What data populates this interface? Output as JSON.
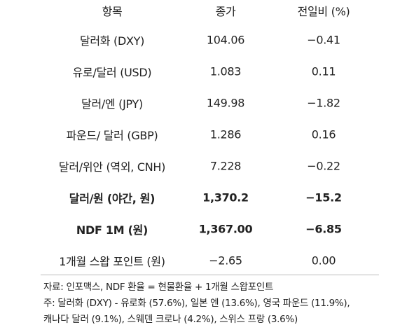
{
  "table": {
    "header": [
      "항목",
      "종가",
      "전일비 (%)"
    ],
    "rows": [
      [
        "달러화 (DXY)",
        "104.06",
        "−0.41"
      ],
      [
        "유로/달러 (USD)",
        "1.083",
        "0.11"
      ],
      [
        "달러/엔 (JPY)",
        "149.98",
        "−1.82"
      ],
      [
        "파운드/ 달러 (GBP)",
        "1.286",
        "0.16"
      ],
      [
        "달러/위안 (역외, CNH)",
        "7.228",
        "−0.22"
      ],
      [
        "달러/원 (야간, 원)",
        "1,370.2",
        "−15.2"
      ],
      [
        "NDF 1M (원)",
        "1,367.00",
        "−6.85"
      ],
      [
        "1개월 스왑 포인트 (원)",
        "−2.65",
        "0.00"
      ]
    ]
  },
  "notes": [
    "자료: 인포맥스, NDF 환율 = 현물환율 + 1개월 스왑포인트",
    "주: 달러화 (DXY) - 유로화 (57.6%), 일본 엔 (13.6%), 영국 파운드 (11.9%),",
    "캐나다 달러 (9.1%), 스웨덴 크로나 (4.2%), 스위스 프랑 (3.6%)"
  ]
}
